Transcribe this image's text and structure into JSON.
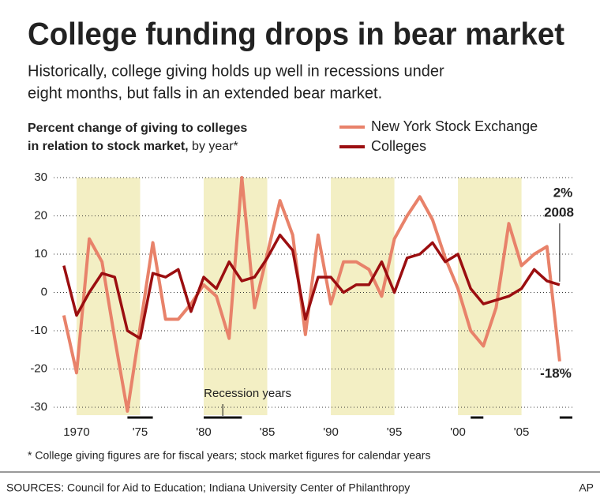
{
  "chart_data": {
    "type": "line",
    "title": "College funding drops in bear market",
    "subtitle": [
      "Historically, college giving holds up well in recessions under",
      "eight months, but falls in an extended bear market."
    ],
    "chart_label": [
      "Percent change of giving to colleges",
      "in relation to stock market,"
    ],
    "chart_label_suffix": " by year*",
    "x": [
      1969,
      1970,
      1971,
      1972,
      1973,
      1974,
      1975,
      1976,
      1977,
      1978,
      1979,
      1980,
      1981,
      1982,
      1983,
      1984,
      1985,
      1986,
      1987,
      1988,
      1989,
      1990,
      1991,
      1992,
      1993,
      1994,
      1995,
      1996,
      1997,
      1998,
      1999,
      2000,
      2001,
      2002,
      2003,
      2004,
      2005,
      2006,
      2007,
      2008
    ],
    "series": [
      {
        "name": "New York Stock Exchange",
        "color": "#e8826a",
        "values": [
          -6,
          -21,
          14,
          8,
          -12,
          -31,
          -9,
          13,
          -7,
          -7,
          -3,
          2,
          -1,
          -12,
          30,
          -4,
          10,
          24,
          15,
          -11,
          15,
          -3,
          8,
          8,
          6,
          -1,
          14,
          20,
          25,
          19,
          9,
          1,
          -10,
          -14,
          -4,
          18,
          7,
          10,
          12,
          -18
        ]
      },
      {
        "name": "Colleges",
        "color": "#9b0e10",
        "values": [
          7,
          -6,
          0,
          5,
          4,
          -10,
          -12,
          5,
          4,
          6,
          -5,
          4,
          1,
          8,
          3,
          4,
          9,
          15,
          11,
          -7,
          4,
          4,
          0,
          2,
          2,
          8,
          0,
          9,
          10,
          13,
          8,
          10,
          1,
          -3,
          -2,
          -1,
          1,
          6,
          3,
          2
        ]
      }
    ],
    "xlim": [
      1968.2,
      2009
    ],
    "ylim": [
      -30,
      30
    ],
    "yticks": [
      30,
      20,
      10,
      0,
      -10,
      -20,
      -30
    ],
    "xticks": [
      {
        "value": 1970,
        "label": "1970"
      },
      {
        "value": 1975,
        "label": "'75"
      },
      {
        "value": 1980,
        "label": "'80"
      },
      {
        "value": 1985,
        "label": "'85"
      },
      {
        "value": 1990,
        "label": "'90"
      },
      {
        "value": 1995,
        "label": "'95"
      },
      {
        "value": 2000,
        "label": "'00"
      },
      {
        "value": 2005,
        "label": "'05"
      }
    ],
    "grid": true,
    "shaded_periods": [
      [
        1970,
        1975
      ],
      [
        1980,
        1985
      ],
      [
        1990,
        1995
      ],
      [
        2000,
        2005
      ]
    ],
    "shade_color": "#f3efc4",
    "recessions": [
      [
        1974,
        1976
      ],
      [
        1980,
        1983
      ],
      [
        2001,
        2002
      ],
      [
        2008,
        2009
      ]
    ],
    "recession_label": "Recession years",
    "annotations": [
      {
        "text": "2%",
        "value": 2,
        "x": 2008
      },
      {
        "text": "2008",
        "x": 2008
      },
      {
        "text": "-18%",
        "value": -18,
        "x": 2008
      }
    ],
    "footnote": "* College giving figures are for fiscal years; stock market figures for calendar years",
    "source": "SOURCES: Council for Aid to Education; Indiana University Center of Philanthropy",
    "credit": "AP"
  }
}
